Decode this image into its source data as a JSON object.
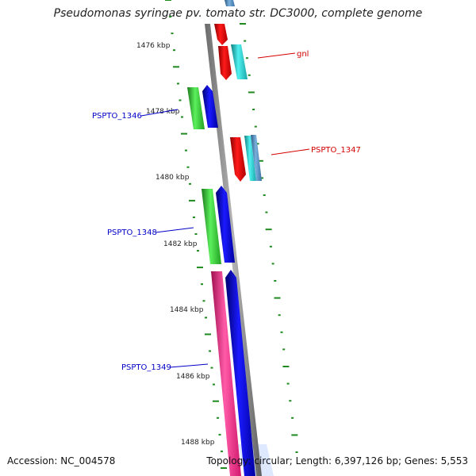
{
  "title": "Pseudomonas syringae pv. tomato str. DC3000, complete genome",
  "footer": {
    "accession": "Accession: NC_004578",
    "summary": "Topology: circular; Length: 6,397,126 bp; Genes: 5,553"
  },
  "kbp_labels": [
    "1476 kbp",
    "1478 kbp",
    "1480 kbp",
    "1482 kbp",
    "1484 kbp",
    "1486 kbp",
    "1488 kbp"
  ],
  "gene_labels": [
    {
      "text": "gnl",
      "color": "#d40000"
    },
    {
      "text": "PSPTO_1346",
      "color": "#0000c8"
    },
    {
      "text": "PSPTO_1347",
      "color": "#d40000"
    },
    {
      "text": "PSPTO_1348",
      "color": "#0000c8"
    },
    {
      "text": "PSPTO_1349",
      "color": "#0000c8"
    }
  ],
  "colors": {
    "backbone": "#8c8c8c",
    "tick": "#1f8a1f",
    "cds_forward": "#0000e0",
    "cds_reverse": "#e00000",
    "gene_green": "#33cc33",
    "gene_cyan": "#20c8c8",
    "gene_pink": "#ff2a8a",
    "gene_steel": "#4a82b4"
  }
}
